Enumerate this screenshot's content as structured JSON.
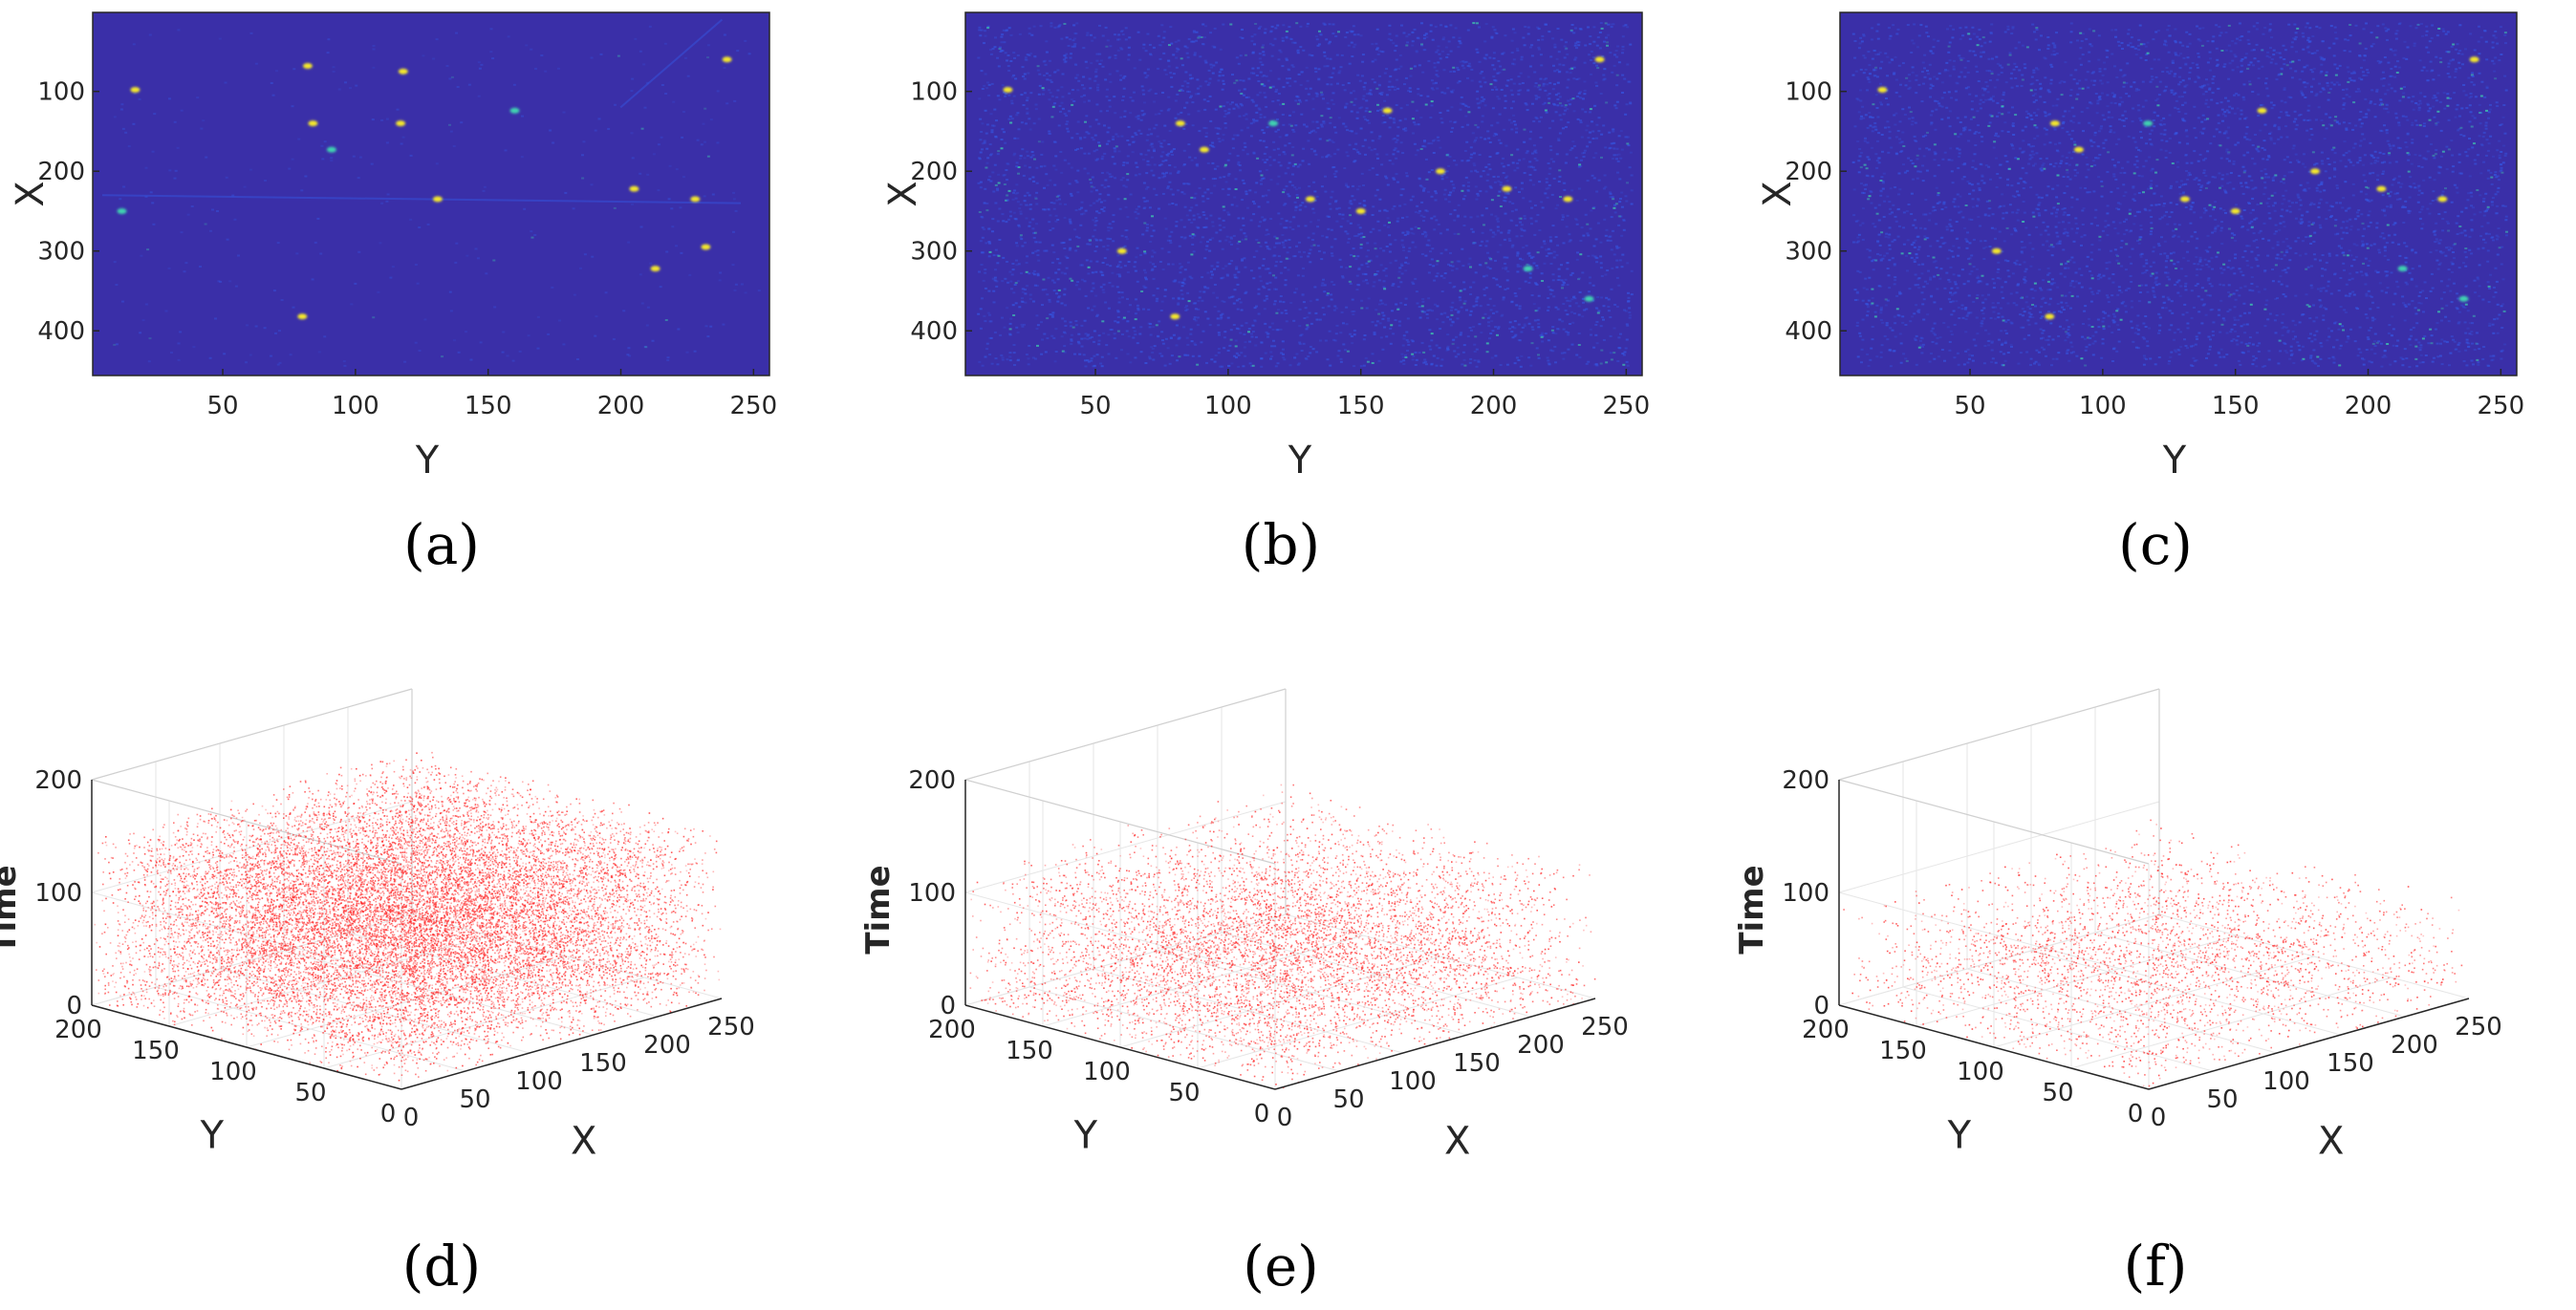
{
  "colors": {
    "heatmap_background": "#3a2fa8",
    "heatmap_noise": "#3555e0",
    "heatmap_hot": "#f5e82b",
    "heatmap_warm": "#3fd3b0",
    "scatter_points": "#ff2a2a"
  },
  "chart_data": [
    {
      "type": "heatmap",
      "panel": "a",
      "caption": "(a)",
      "xlabel": "Y",
      "ylabel": "X",
      "xlim": [
        1,
        256
      ],
      "ylim": [
        1,
        456
      ],
      "y_reversed": true,
      "xticks": [
        50,
        100,
        150,
        200,
        250
      ],
      "yticks": [
        100,
        200,
        300,
        400
      ],
      "noise_level": "low",
      "bright_spots": [
        {
          "y": 17,
          "x": 98
        },
        {
          "y": 82,
          "x": 68
        },
        {
          "y": 84,
          "x": 140
        },
        {
          "y": 91,
          "x": 173
        },
        {
          "y": 118,
          "x": 75
        },
        {
          "y": 117,
          "x": 140
        },
        {
          "y": 131,
          "x": 235
        },
        {
          "y": 160,
          "x": 124
        },
        {
          "y": 205,
          "x": 222
        },
        {
          "y": 213,
          "x": 322
        },
        {
          "y": 80,
          "x": 382
        },
        {
          "y": 12,
          "x": 250
        },
        {
          "y": 240,
          "x": 60
        },
        {
          "y": 228,
          "x": 235
        },
        {
          "y": 232,
          "x": 295
        }
      ]
    },
    {
      "type": "heatmap",
      "panel": "b",
      "caption": "(b)",
      "xlabel": "Y",
      "ylabel": "X",
      "xlim": [
        1,
        256
      ],
      "ylim": [
        1,
        456
      ],
      "y_reversed": true,
      "xticks": [
        50,
        100,
        150,
        200,
        250
      ],
      "yticks": [
        100,
        200,
        300,
        400
      ],
      "noise_level": "high",
      "bright_spots": [
        {
          "y": 17,
          "x": 98
        },
        {
          "y": 82,
          "x": 140
        },
        {
          "y": 91,
          "x": 173
        },
        {
          "y": 117,
          "x": 140
        },
        {
          "y": 131,
          "x": 235
        },
        {
          "y": 160,
          "x": 124
        },
        {
          "y": 205,
          "x": 222
        },
        {
          "y": 213,
          "x": 322
        },
        {
          "y": 80,
          "x": 382
        },
        {
          "y": 240,
          "x": 60
        },
        {
          "y": 228,
          "x": 235
        },
        {
          "y": 236,
          "x": 360
        },
        {
          "y": 150,
          "x": 250
        },
        {
          "y": 60,
          "x": 300
        },
        {
          "y": 180,
          "x": 200
        }
      ]
    },
    {
      "type": "heatmap",
      "panel": "c",
      "caption": "(c)",
      "xlabel": "Y",
      "ylabel": "X",
      "xlim": [
        1,
        256
      ],
      "ylim": [
        1,
        456
      ],
      "y_reversed": true,
      "xticks": [
        50,
        100,
        150,
        200,
        250
      ],
      "yticks": [
        100,
        200,
        300,
        400
      ],
      "noise_level": "high",
      "bright_spots": [
        {
          "y": 17,
          "x": 98
        },
        {
          "y": 82,
          "x": 140
        },
        {
          "y": 91,
          "x": 173
        },
        {
          "y": 117,
          "x": 140
        },
        {
          "y": 131,
          "x": 235
        },
        {
          "y": 160,
          "x": 124
        },
        {
          "y": 205,
          "x": 222
        },
        {
          "y": 213,
          "x": 322
        },
        {
          "y": 80,
          "x": 382
        },
        {
          "y": 240,
          "x": 60
        },
        {
          "y": 228,
          "x": 235
        },
        {
          "y": 236,
          "x": 360
        },
        {
          "y": 150,
          "x": 250
        },
        {
          "y": 60,
          "x": 300
        },
        {
          "y": 180,
          "x": 200
        }
      ]
    },
    {
      "type": "scatter",
      "panel": "d",
      "caption": "(d)",
      "xlabel": "X",
      "ylabel": "Y",
      "zlabel": "Time",
      "xlim": [
        0,
        250
      ],
      "ylim": [
        0,
        200
      ],
      "zlim": [
        0,
        200
      ],
      "xticks": [
        0,
        50,
        100,
        150,
        200,
        250
      ],
      "yticks": [
        0,
        50,
        100,
        150,
        200
      ],
      "zticks": [
        0,
        100,
        200
      ],
      "density": "very high"
    },
    {
      "type": "scatter",
      "panel": "e",
      "caption": "(e)",
      "xlabel": "X",
      "ylabel": "Y",
      "zlabel": "Time",
      "xlim": [
        0,
        250
      ],
      "ylim": [
        0,
        200
      ],
      "zlim": [
        0,
        200
      ],
      "xticks": [
        0,
        50,
        100,
        150,
        200,
        250
      ],
      "yticks": [
        0,
        50,
        100,
        150,
        200
      ],
      "zticks": [
        0,
        100,
        200
      ],
      "density": "medium"
    },
    {
      "type": "scatter",
      "panel": "f",
      "caption": "(f)",
      "xlabel": "X",
      "ylabel": "Y",
      "zlabel": "Time",
      "xlim": [
        0,
        250
      ],
      "ylim": [
        0,
        200
      ],
      "zlim": [
        0,
        200
      ],
      "xticks": [
        0,
        50,
        100,
        150,
        200,
        250
      ],
      "yticks": [
        0,
        50,
        100,
        150,
        200
      ],
      "zticks": [
        0,
        100,
        200
      ],
      "density": "low"
    }
  ]
}
